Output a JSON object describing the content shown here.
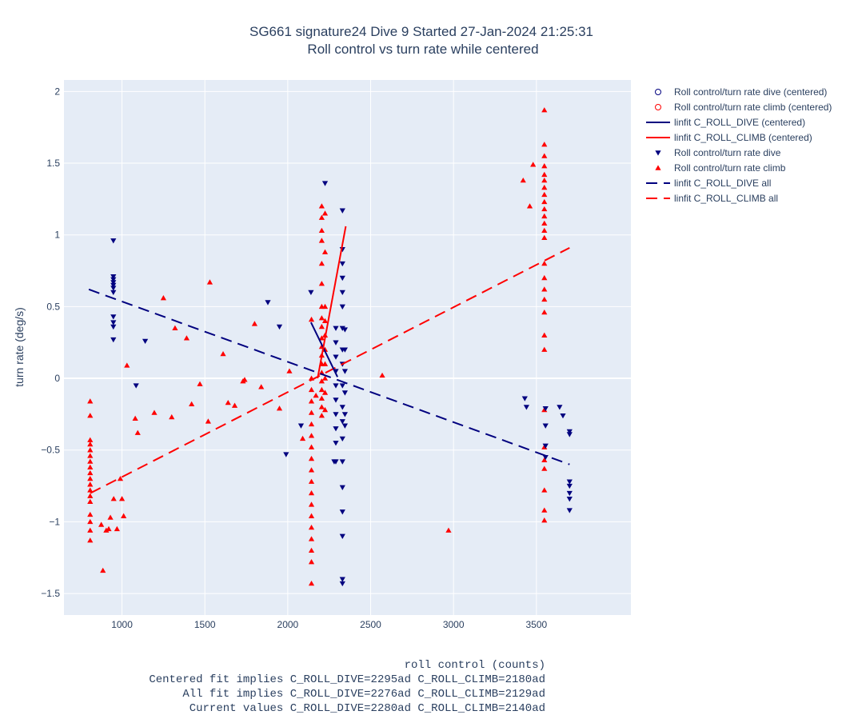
{
  "chart_data": {
    "type": "scatter",
    "title": "SG661 signature24 Dive 9 Started 27-Jan-2024 21:25:31",
    "subtitle": "Roll control vs turn rate while centered",
    "xlabel": "roll control (counts)",
    "xlabel_notes": [
      "Centered fit implies C_ROLL_DIVE=2295ad C_ROLL_CLIMB=2180ad",
      "All fit implies C_ROLL_DIVE=2276ad C_ROLL_CLIMB=2129ad",
      "Current values C_ROLL_DIVE=2280ad C_ROLL_CLIMB=2140ad"
    ],
    "ylabel": "turn rate (deg/s)",
    "xlim": [
      650,
      4070
    ],
    "ylim": [
      -1.65,
      2.08
    ],
    "xticks": [
      1000,
      1500,
      2000,
      2500,
      3000,
      3500
    ],
    "yticks": [
      -1.5,
      -1,
      -0.5,
      0,
      0.5,
      1,
      1.5,
      2
    ],
    "ytick_labels": [
      "−1.5",
      "−1",
      "−0.5",
      "0",
      "0.5",
      "1",
      "1.5",
      "2"
    ],
    "grid": true,
    "legend_position": "right",
    "colors": {
      "dive": "#00007f",
      "climb": "#ff0000",
      "plot_bg": "#e5ecf6",
      "grid": "#ffffff",
      "text": "#2a3f5f"
    },
    "series": [
      {
        "name": "Roll control/turn rate dive (centered)",
        "kind": "markers",
        "marker": "circle-open",
        "color": "#00007f",
        "x": [],
        "y": []
      },
      {
        "name": "Roll control/turn rate climb (centered)",
        "kind": "markers",
        "marker": "circle-open",
        "color": "#ff0000",
        "x": [],
        "y": []
      },
      {
        "name": "linfit C_ROLL_DIVE (centered)",
        "kind": "line",
        "dash": "solid",
        "color": "#00007f",
        "x": [
          2140,
          2300
        ],
        "y": [
          0.39,
          0.01
        ]
      },
      {
        "name": "linfit C_ROLL_CLIMB (centered)",
        "kind": "line",
        "dash": "solid",
        "color": "#ff0000",
        "x": [
          2180,
          2350
        ],
        "y": [
          0.0,
          1.06
        ]
      },
      {
        "name": "Roll control/turn rate dive",
        "kind": "markers",
        "marker": "triangle-down",
        "color": "#00007f",
        "clusters": [
          {
            "x": 948,
            "y": [
              0.96,
              0.71,
              0.69,
              0.67,
              0.65,
              0.63,
              0.6,
              0.43,
              0.39,
              0.36,
              0.27
            ]
          },
          {
            "x": 2225,
            "y": [
              1.36
            ]
          },
          {
            "x": 2290,
            "y": [
              0.35,
              0.25,
              0.15,
              0.05,
              -0.05,
              -0.15,
              -0.25,
              -0.35,
              -0.45,
              -0.58
            ]
          },
          {
            "x": 2330,
            "y": [
              1.17,
              0.9,
              0.8,
              0.7,
              0.6,
              0.5,
              0.35,
              0.2,
              0.1,
              -0.05,
              -0.2,
              -0.3,
              -0.42,
              -0.58,
              -0.76,
              -0.93,
              -1.1,
              -1.4,
              -1.43
            ]
          },
          {
            "x": 2345,
            "y": [
              0.34,
              0.2,
              0.05,
              -0.1,
              -0.25,
              -0.33
            ]
          },
          {
            "x": 3555,
            "y": [
              -0.21,
              -0.33,
              -0.47,
              -0.55
            ]
          },
          {
            "x": 3700,
            "y": [
              -0.37,
              -0.39,
              -0.72,
              -0.75,
              -0.8,
              -0.84,
              -0.92
            ]
          }
        ],
        "x": [
          1085,
          1140,
          1880,
          1950,
          1990,
          2080,
          2140,
          2280,
          3430,
          3440,
          3640,
          3660
        ],
        "y": [
          -0.05,
          0.26,
          0.53,
          0.36,
          -0.53,
          -0.33,
          0.6,
          -0.58,
          -0.14,
          -0.2,
          -0.2,
          -0.26
        ]
      },
      {
        "name": "Roll control/turn rate climb",
        "kind": "markers",
        "marker": "triangle-up",
        "color": "#ff0000",
        "clusters": [
          {
            "x": 808,
            "y": [
              -0.16,
              -0.26,
              -0.43,
              -0.46,
              -0.5,
              -0.54,
              -0.58,
              -0.62,
              -0.66,
              -0.7,
              -0.74,
              -0.78,
              -0.82,
              -0.86,
              -0.95,
              -1.0,
              -1.06,
              -1.13
            ]
          },
          {
            "x": 2143,
            "y": [
              0.41,
              0.0,
              -0.08,
              -0.16,
              -0.24,
              -0.32,
              -0.4,
              -0.48,
              -0.56,
              -0.64,
              -0.72,
              -0.8,
              -0.88,
              -0.96,
              -1.04,
              -1.12,
              -1.2,
              -1.28,
              -1.43
            ]
          },
          {
            "x": 2205,
            "y": [
              1.2,
              1.12,
              1.03,
              0.96,
              0.8,
              0.66,
              0.5,
              0.42,
              0.36,
              0.28,
              0.22,
              0.16,
              0.1,
              0.04,
              -0.02,
              -0.08,
              -0.14,
              -0.2,
              -0.26
            ]
          },
          {
            "x": 2225,
            "y": [
              1.15,
              0.88,
              0.5,
              0.4,
              0.3,
              0.2,
              0.1,
              0.0,
              -0.1,
              -0.22
            ]
          },
          {
            "x": 3548,
            "y": [
              1.87,
              1.63,
              1.55,
              1.48,
              1.42,
              1.38,
              1.33,
              1.28,
              1.23,
              1.18,
              1.13,
              1.08,
              1.03,
              0.98,
              0.8,
              0.7,
              0.62,
              0.55,
              0.46,
              0.3,
              0.2,
              -0.22,
              -0.48,
              -0.57,
              -0.63,
              -0.78,
              -0.92,
              -0.99
            ]
          }
        ],
        "x": [
          875,
          885,
          905,
          920,
          930,
          950,
          970,
          990,
          1000,
          1010,
          1030,
          1080,
          1095,
          1195,
          1250,
          1300,
          1320,
          1390,
          1420,
          1470,
          1520,
          1530,
          1610,
          1640,
          1680,
          1730,
          1740,
          1800,
          1840,
          1950,
          2010,
          2090,
          2170,
          2570,
          2970,
          3420,
          3460,
          3480
        ],
        "y": [
          -1.02,
          -1.34,
          -1.06,
          -1.05,
          -0.97,
          -0.84,
          -1.05,
          -0.7,
          -0.84,
          -0.96,
          0.09,
          -0.28,
          -0.38,
          -0.24,
          0.56,
          -0.27,
          0.35,
          0.28,
          -0.18,
          -0.04,
          -0.3,
          0.67,
          0.17,
          -0.17,
          -0.19,
          -0.02,
          -0.01,
          0.38,
          -0.06,
          -0.21,
          0.05,
          -0.42,
          -0.12,
          0.02,
          -1.06,
          1.38,
          1.2,
          1.49
        ]
      },
      {
        "name": "linfit C_ROLL_DIVE all",
        "kind": "line",
        "dash": "dash",
        "color": "#00007f",
        "x": [
          800,
          3700
        ],
        "y": [
          0.62,
          -0.6
        ]
      },
      {
        "name": "linfit C_ROLL_CLIMB all",
        "kind": "line",
        "dash": "dash",
        "color": "#ff0000",
        "x": [
          810,
          3700
        ],
        "y": [
          -0.8,
          0.91
        ]
      }
    ]
  }
}
